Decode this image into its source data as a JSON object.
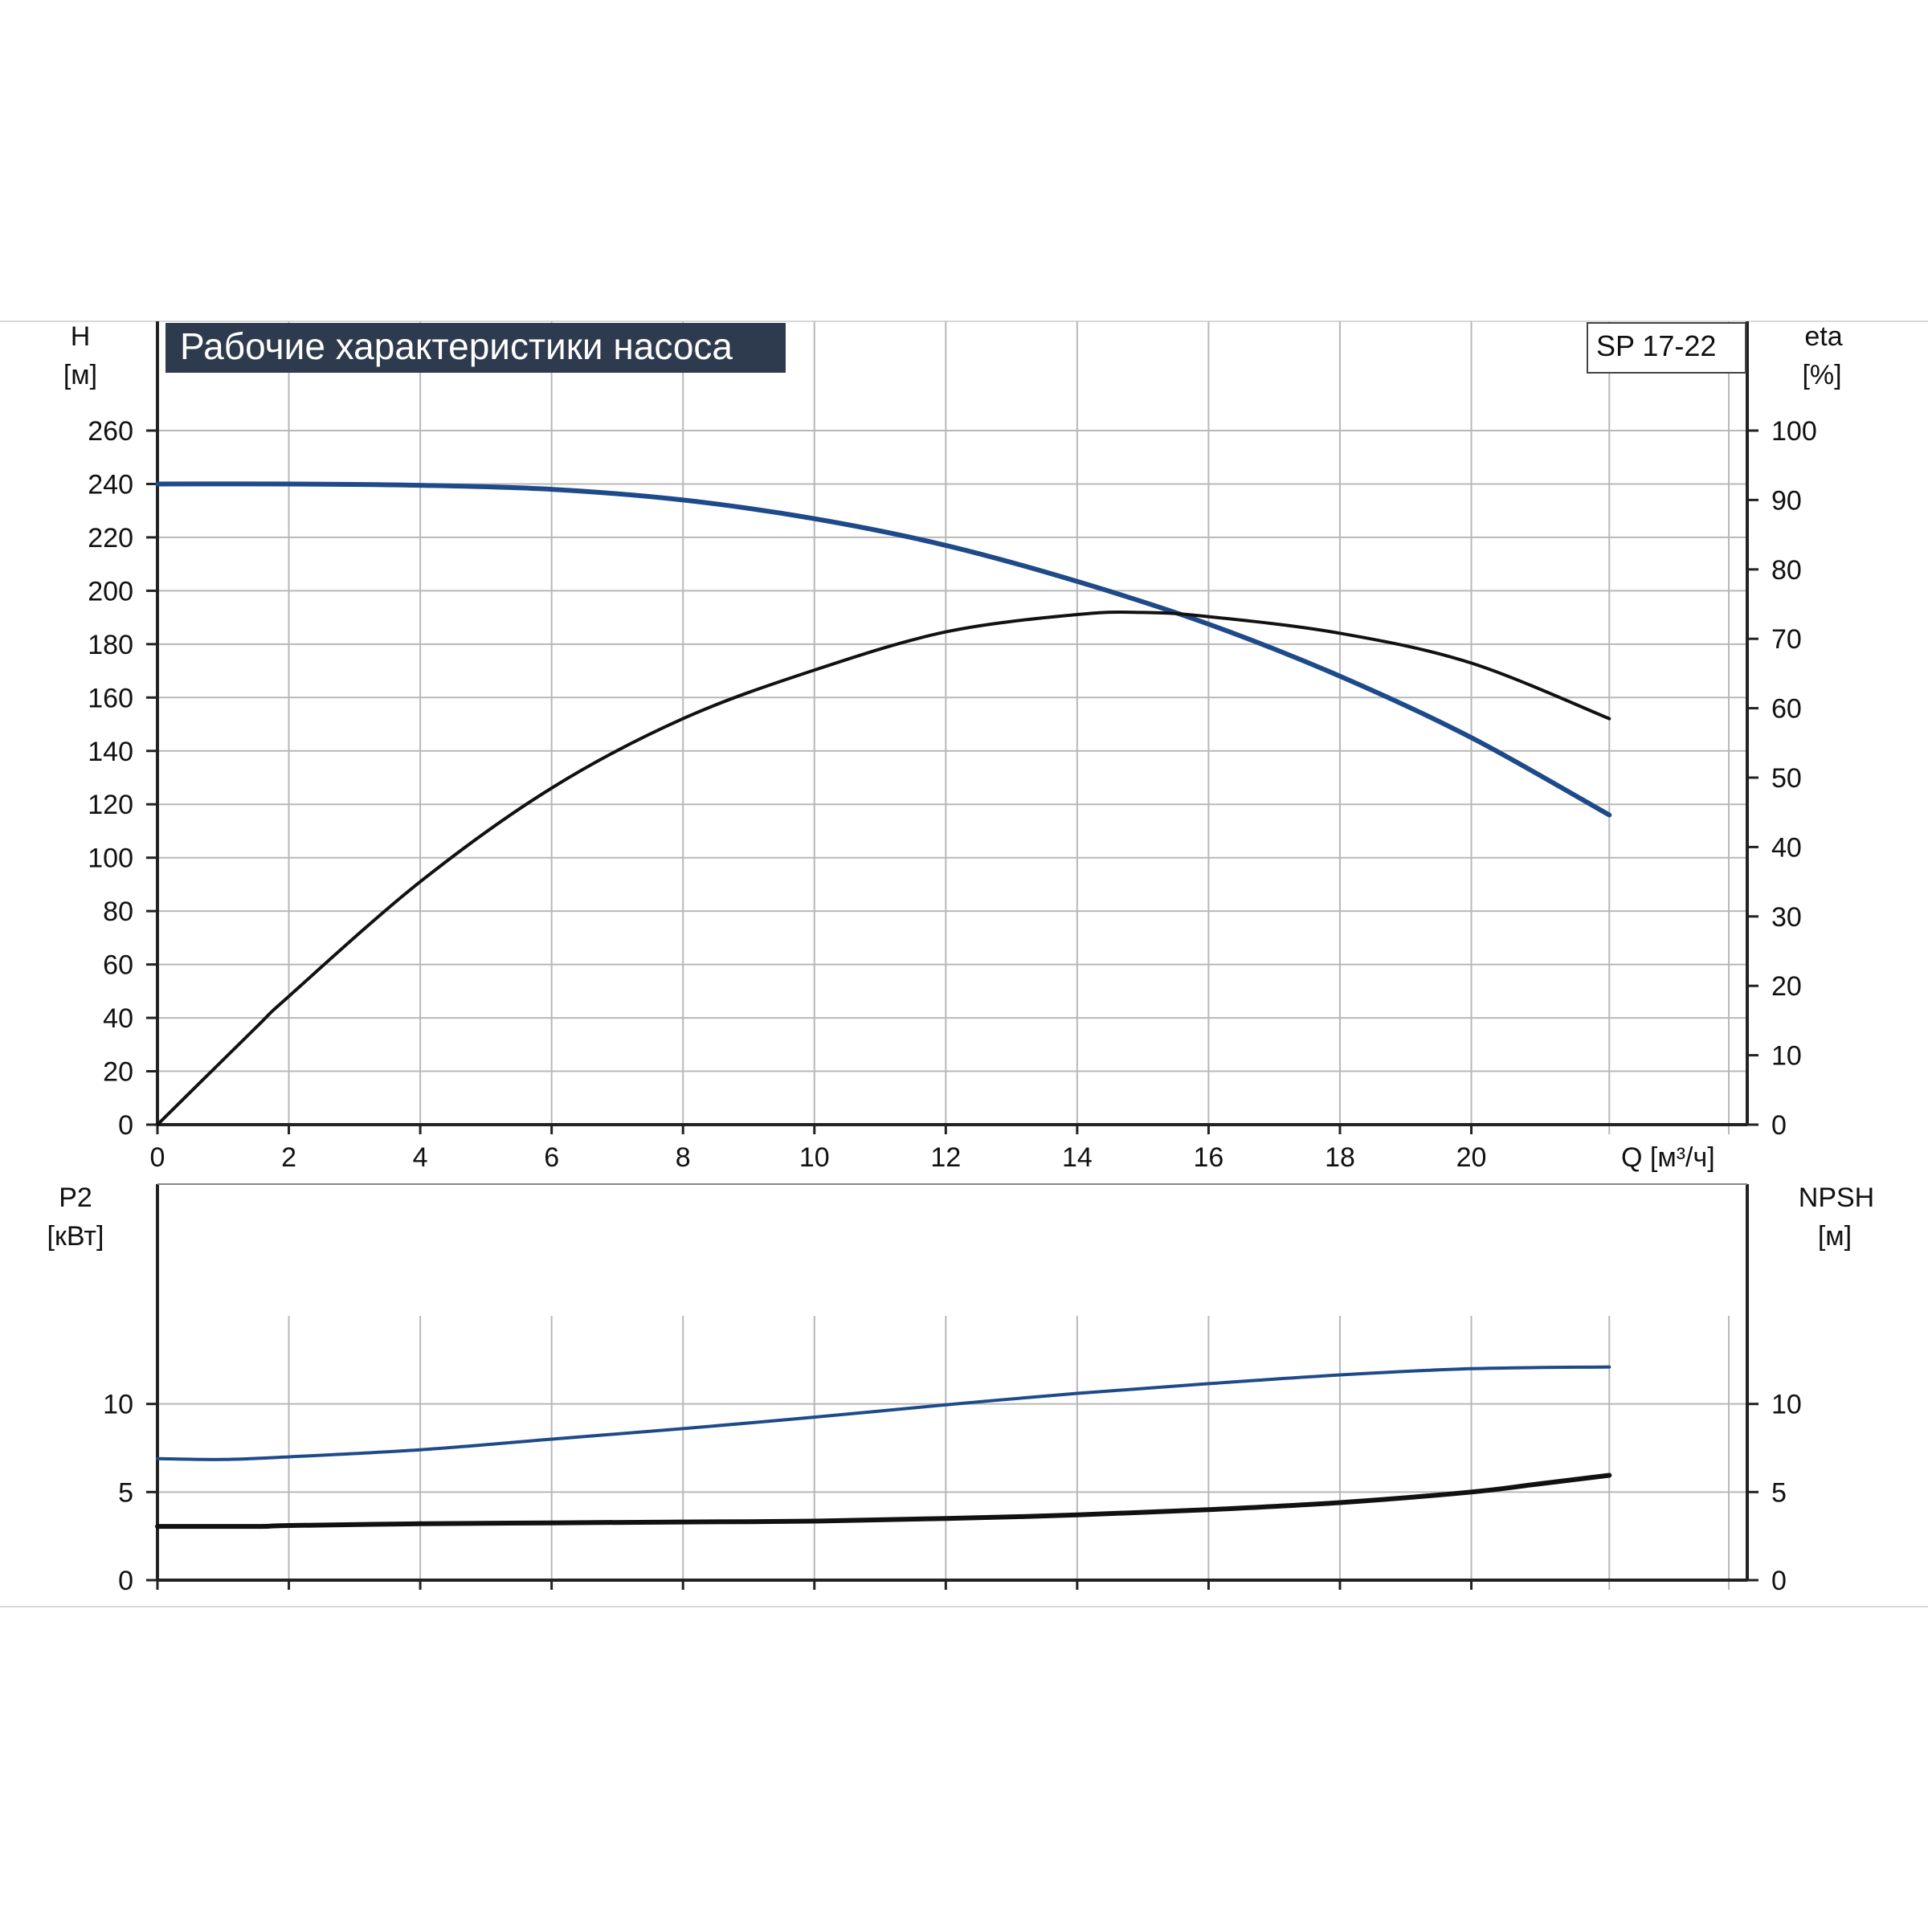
{
  "chart_data": [
    {
      "type": "line",
      "title": "Рабочие характеристики насоса",
      "model_label": "SP 17-22",
      "x_axis": {
        "label": "Q [м³/ч]",
        "range": [
          0,
          24.2
        ],
        "ticks": [
          0,
          2,
          4,
          6,
          8,
          10,
          12,
          14,
          16,
          18,
          20
        ]
      },
      "y_left": {
        "label_line1": "H",
        "label_line2": "[м]",
        "range": [
          0,
          260
        ],
        "ticks": [
          0,
          20,
          40,
          60,
          80,
          100,
          120,
          140,
          160,
          180,
          200,
          220,
          240,
          260
        ]
      },
      "y_right": {
        "label_line1": "eta",
        "label_line2": "[%]",
        "range": [
          0,
          100
        ],
        "ticks": [
          0,
          10,
          20,
          30,
          40,
          50,
          60,
          70,
          80,
          90,
          100
        ]
      },
      "grid": true,
      "series": [
        {
          "axis": "left",
          "color": "#1e4a8a",
          "points": [
            [
              0,
              240
            ],
            [
              2,
              240
            ],
            [
              4,
              239.5
            ],
            [
              6,
              238
            ],
            [
              8,
              234
            ],
            [
              10,
              227
            ],
            [
              12,
              217
            ],
            [
              14,
              203.5
            ],
            [
              16,
              187.5
            ],
            [
              18,
              168
            ],
            [
              20,
              145
            ],
            [
              22.1,
              116
            ]
          ]
        },
        {
          "axis": "right",
          "color": "#111111",
          "points": [
            [
              0,
              0
            ],
            [
              1.5,
              14
            ],
            [
              2,
              18.5
            ],
            [
              4,
              35
            ],
            [
              6,
              48.5
            ],
            [
              8,
              58.5
            ],
            [
              10,
              65.5
            ],
            [
              12,
              71
            ],
            [
              14,
              73.5
            ],
            [
              15,
              73.8
            ],
            [
              16,
              73.2
            ],
            [
              18,
              70.8
            ],
            [
              20,
              66.5
            ],
            [
              22.1,
              58.5
            ]
          ]
        }
      ]
    },
    {
      "type": "line",
      "x_axis": {
        "range": [
          0,
          24.2
        ],
        "ticks": [
          0,
          2,
          4,
          6,
          8,
          10,
          12,
          14,
          16,
          18,
          20
        ]
      },
      "y_left": {
        "label_line1": "P2",
        "label_line2": "[кВт]",
        "range": [
          0,
          15
        ],
        "ticks": [
          0,
          5,
          10
        ]
      },
      "y_right": {
        "label_line1": "NPSH",
        "label_line2": "[м]",
        "range": [
          0,
          15
        ],
        "ticks": [
          0,
          5,
          10
        ]
      },
      "grid": true,
      "series": [
        {
          "axis": "left",
          "color": "#1e4a8a",
          "points": [
            [
              0,
              6.9
            ],
            [
              1,
              6.85
            ],
            [
              2,
              7.0
            ],
            [
              4,
              7.4
            ],
            [
              6,
              8.0
            ],
            [
              8,
              8.6
            ],
            [
              10,
              9.25
            ],
            [
              12,
              9.95
            ],
            [
              14,
              10.6
            ],
            [
              16,
              11.15
            ],
            [
              18,
              11.65
            ],
            [
              20,
              12.0
            ],
            [
              22.1,
              12.1
            ]
          ]
        },
        {
          "axis": "right",
          "color": "#111111",
          "points": [
            [
              0,
              3.05
            ],
            [
              1.5,
              3.05
            ],
            [
              2,
              3.1
            ],
            [
              4,
              3.2
            ],
            [
              6,
              3.25
            ],
            [
              8,
              3.3
            ],
            [
              10,
              3.35
            ],
            [
              12,
              3.5
            ],
            [
              14,
              3.7
            ],
            [
              16,
              4.0
            ],
            [
              18,
              4.4
            ],
            [
              20,
              5.0
            ],
            [
              21,
              5.45
            ],
            [
              22.1,
              5.95
            ]
          ]
        }
      ]
    }
  ]
}
